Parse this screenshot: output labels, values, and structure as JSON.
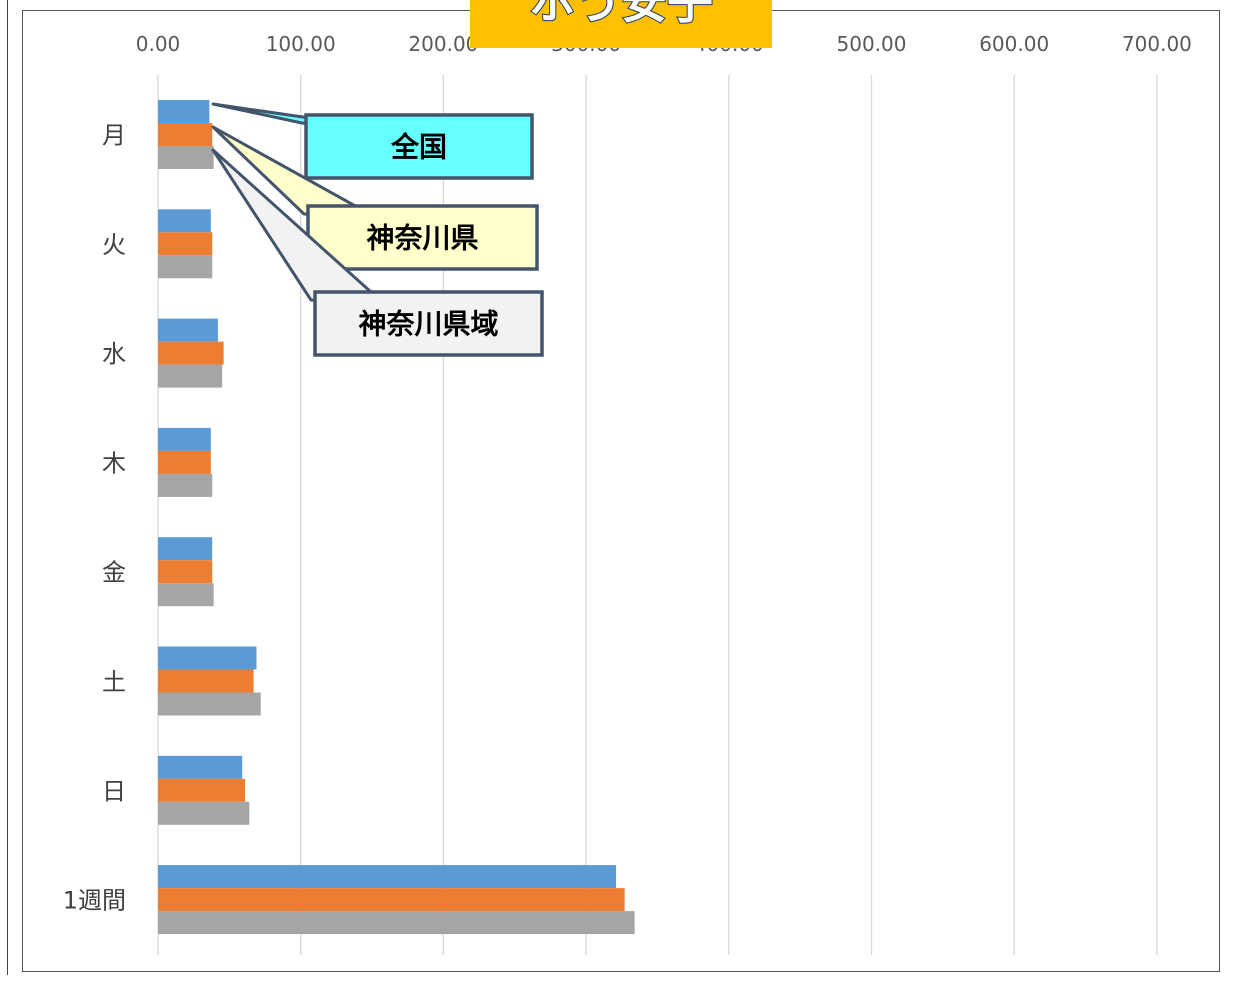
{
  "title": "ホう安子",
  "chart_data": {
    "type": "bar",
    "orientation": "horizontal",
    "categories": [
      "月",
      "火",
      "水",
      "木",
      "金",
      "土",
      "日",
      "1週間"
    ],
    "x_ticks": [
      "0.00",
      "100.00",
      "200.00",
      "300.00",
      "400.00",
      "500.00",
      "600.00",
      "700.00"
    ],
    "xlim": [
      0,
      700
    ],
    "grid": true,
    "series": [
      {
        "name": "全国",
        "color": "#5B9BD5",
        "values": [
          36,
          37,
          42,
          37,
          38,
          69,
          59,
          321
        ]
      },
      {
        "name": "神奈川県",
        "color": "#ED7D31",
        "values": [
          38,
          38,
          46,
          37,
          38,
          67,
          61,
          327
        ]
      },
      {
        "name": "神奈川県域",
        "color": "#A5A5A5",
        "values": [
          39,
          38,
          45,
          38,
          39,
          72,
          64,
          334
        ]
      }
    ],
    "legend": [
      {
        "label": "全国",
        "fill": "#66FFFF"
      },
      {
        "label": "神奈川県",
        "fill": "#FFFFCC"
      },
      {
        "label": "神奈川県域",
        "fill": "#F2F2F2"
      }
    ]
  }
}
